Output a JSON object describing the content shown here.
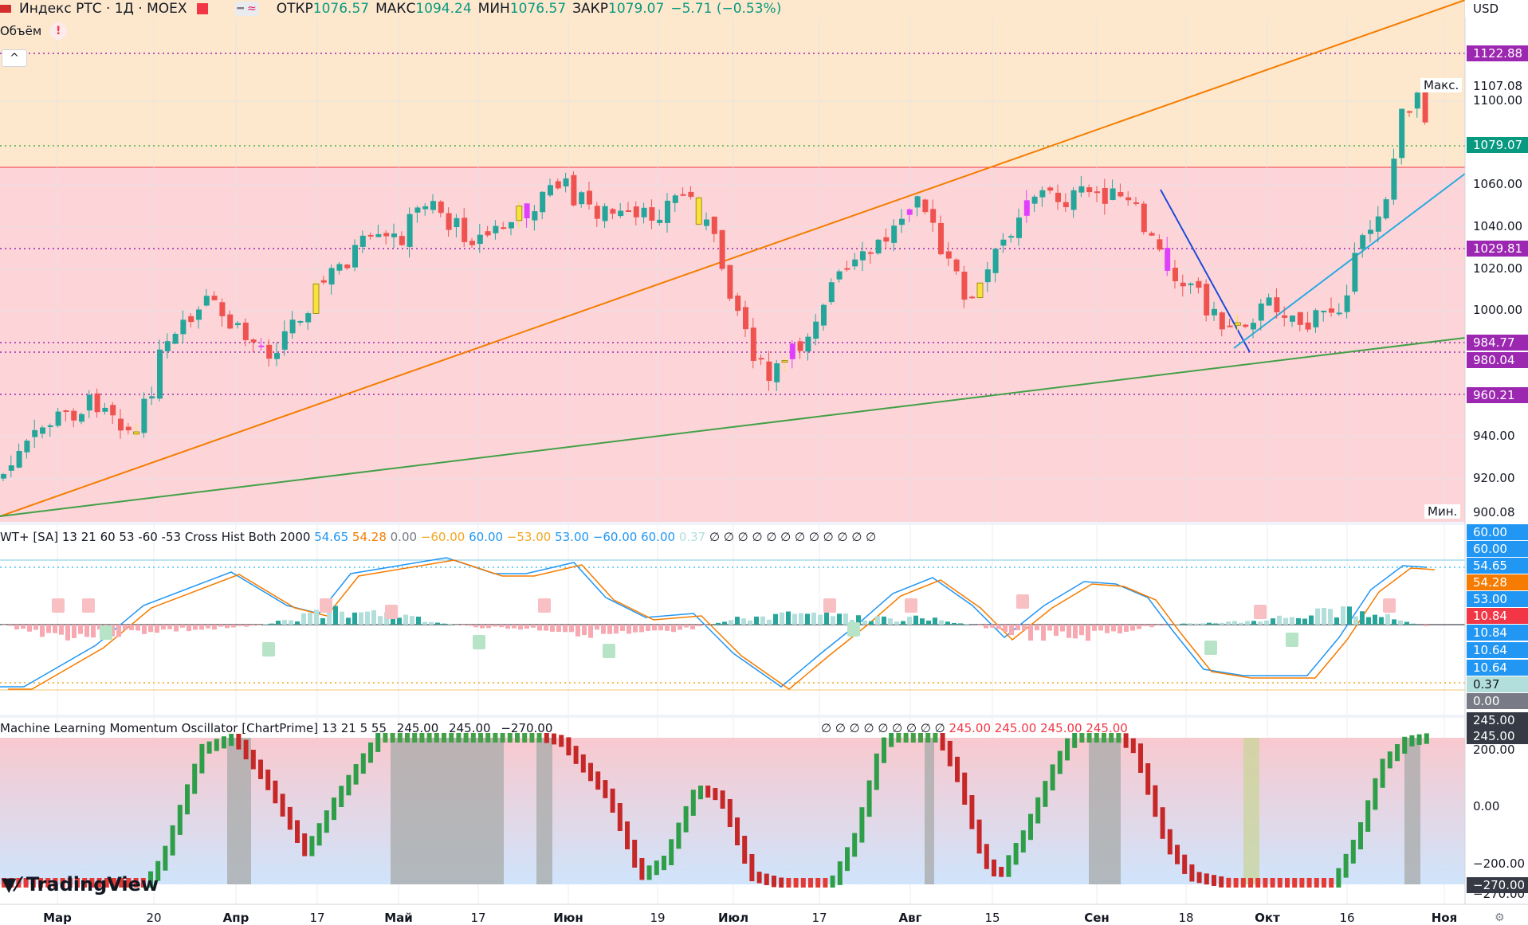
{
  "header": {
    "symbol": "Индекс РТС · 1Д · MOEX",
    "open_label": "ОТКР",
    "open": "1076.57",
    "high_label": "МАКС",
    "high": "1094.24",
    "low_label": "МИН",
    "low": "1076.57",
    "close_label": "ЗАКР",
    "close": "1079.07",
    "change": "−5.71 (−0.53%)",
    "currency": "USD"
  },
  "volume_label": "Объём",
  "collapse_glyph": "^",
  "main_axis": {
    "ticks": [
      "1100.00",
      "1060.00",
      "1040.00",
      "1020.00",
      "1000.00",
      "940.00",
      "920.00"
    ],
    "tags": [
      {
        "text": "1122.88",
        "color": "#9c27b0"
      },
      {
        "text": "1107.08",
        "color": "#ffffff",
        "fg": "#131722"
      },
      {
        "text": "1079.07",
        "color": "#089981"
      },
      {
        "text": "1029.81",
        "color": "#9c27b0"
      },
      {
        "text": "984.77",
        "color": "#9c27b0"
      },
      {
        "text": "980.04",
        "color": "#9c27b0"
      },
      {
        "text": "960.21",
        "color": "#9c27b0"
      },
      {
        "text": "900.08",
        "color": "#ffffff",
        "fg": "#131722"
      }
    ],
    "max_label": "Макс.",
    "min_label": "Мин."
  },
  "wt": {
    "title": "WT+ [SA] 13 21 60 53 -60 -53 Cross Hist Both 2000",
    "values": [
      {
        "t": "54.65",
        "c": "#2196f3"
      },
      {
        "t": "54.28",
        "c": "#f57c00"
      },
      {
        "t": "0.00",
        "c": "#787b86"
      },
      {
        "t": "−60.00",
        "c": "#f5a623"
      },
      {
        "t": "60.00",
        "c": "#2196f3"
      },
      {
        "t": "−53.00",
        "c": "#f5a623"
      },
      {
        "t": "53.00",
        "c": "#2196f3"
      },
      {
        "t": "−60.00",
        "c": "#2196f3"
      },
      {
        "t": "60.00",
        "c": "#2196f3"
      },
      {
        "t": "0.37",
        "c": "#b2dfdb"
      }
    ],
    "empty_glyphs": "∅ ∅ ∅ ∅ ∅ ∅ ∅ ∅ ∅ ∅ ∅ ∅",
    "tags": [
      {
        "text": "60.00",
        "color": "#2196f3"
      },
      {
        "text": "60.00",
        "color": "#2196f3"
      },
      {
        "text": "54.65",
        "color": "#2196f3"
      },
      {
        "text": "54.28",
        "color": "#f57c00"
      },
      {
        "text": "53.00",
        "color": "#2196f3"
      },
      {
        "text": "10.84",
        "color": "#f23645"
      },
      {
        "text": "10.84",
        "color": "#2196f3"
      },
      {
        "text": "10.64",
        "color": "#2196f3"
      },
      {
        "text": "10.64",
        "color": "#2196f3"
      },
      {
        "text": "0.37",
        "color": "#b2dfdb",
        "fg": "#131722"
      },
      {
        "text": "0.00",
        "color": "#787b86"
      }
    ]
  },
  "ml": {
    "title": "Machine Learning Momentum Oscillator [ChartPrime] 13 21 5 55",
    "v1": "245.00",
    "v2": "245.00",
    "v3": "−270.00",
    "empty_glyphs": "∅ ∅ ∅ ∅ ∅ ∅ ∅ ∅ ∅",
    "red_vals": [
      "245.00",
      "245.00",
      "245.00",
      "245.00"
    ],
    "ticks": [
      "200.00",
      "0.00",
      "−200.00",
      "−270.00"
    ],
    "tags": [
      {
        "text": "245.00",
        "color": "#363a45"
      },
      {
        "text": "245.00",
        "color": "#363a45"
      },
      {
        "text": "−270.00",
        "color": "#363a45"
      }
    ]
  },
  "xaxis": [
    {
      "t": "Мар",
      "b": true
    },
    {
      "t": "20",
      "b": false
    },
    {
      "t": "Апр",
      "b": true
    },
    {
      "t": "17",
      "b": false
    },
    {
      "t": "Май",
      "b": true
    },
    {
      "t": "17",
      "b": false
    },
    {
      "t": "Июн",
      "b": true
    },
    {
      "t": "19",
      "b": false
    },
    {
      "t": "Июл",
      "b": true
    },
    {
      "t": "17",
      "b": false
    },
    {
      "t": "Авг",
      "b": true
    },
    {
      "t": "15",
      "b": false
    },
    {
      "t": "Сен",
      "b": true
    },
    {
      "t": "18",
      "b": false
    },
    {
      "t": "Окт",
      "b": true
    },
    {
      "t": "16",
      "b": false
    },
    {
      "t": "Ноя",
      "b": true
    }
  ],
  "logo": "TradingView",
  "colors": {
    "up": "#26a69a",
    "down": "#ef5350",
    "pink": "#e040fb",
    "yellow": "#f9e33b"
  }
}
